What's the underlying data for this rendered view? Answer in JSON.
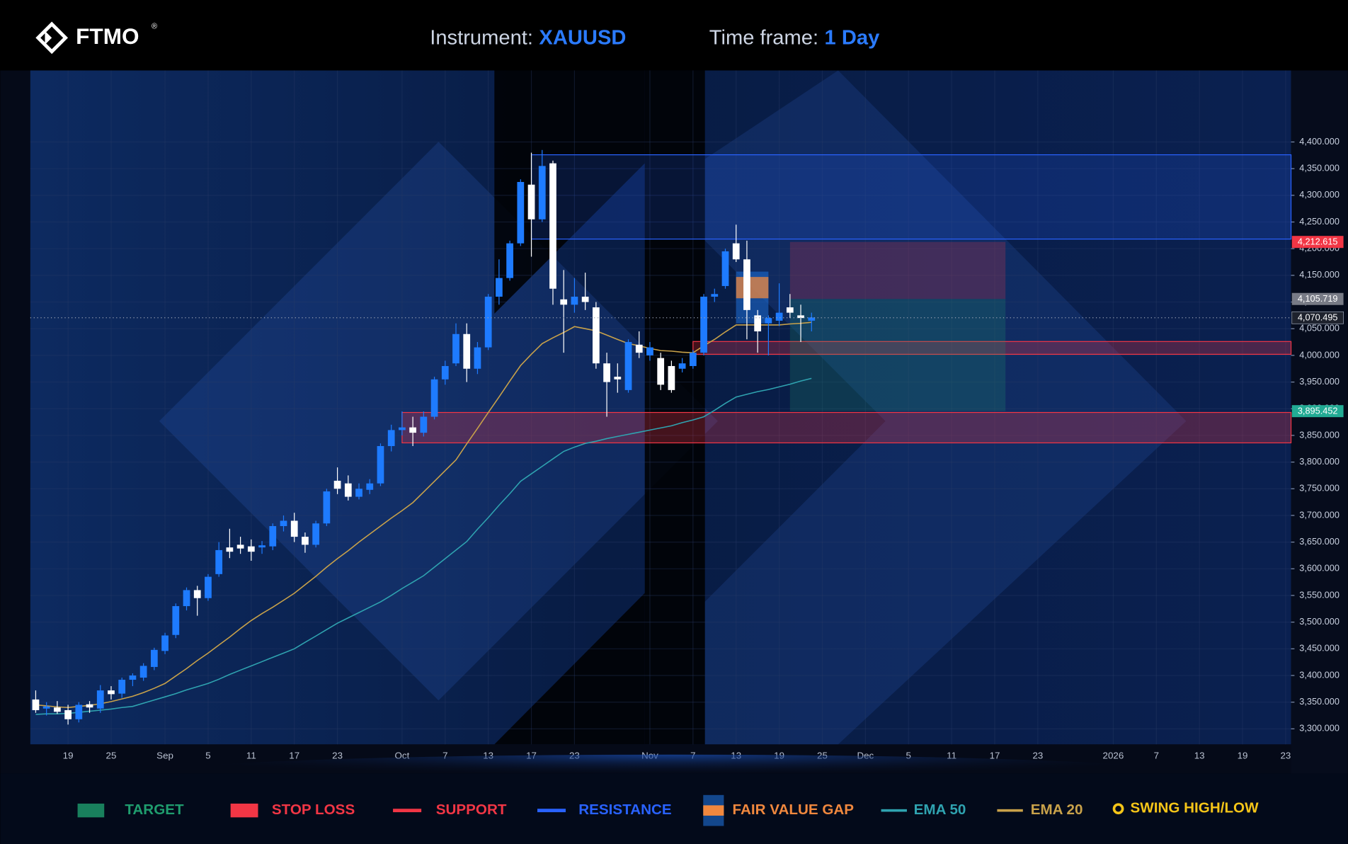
{
  "header": {
    "brand": "FTMO",
    "brand_mark": "®",
    "instrument_label": "Instrument:",
    "instrument": "XAUUSD",
    "timeframe_label": "Time frame:",
    "timeframe": "1 Day"
  },
  "chart_data": {
    "type": "candlestick",
    "up_color": "#1e7bff",
    "down_color": "#ffffff",
    "grid": true,
    "ylim": [
      3271,
      4534
    ],
    "yticks": [
      {
        "value": 3300,
        "label": "3,300.000"
      },
      {
        "value": 3350,
        "label": "3,350.000"
      },
      {
        "value": 3400,
        "label": "3,400.000"
      },
      {
        "value": 3450,
        "label": "3,450.000"
      },
      {
        "value": 3500,
        "label": "3,500.000"
      },
      {
        "value": 3550,
        "label": "3,550.000"
      },
      {
        "value": 3600,
        "label": "3,600.000"
      },
      {
        "value": 3650,
        "label": "3,650.000"
      },
      {
        "value": 3700,
        "label": "3,700.000"
      },
      {
        "value": 3750,
        "label": "3,750.000"
      },
      {
        "value": 3800,
        "label": "3,800.000"
      },
      {
        "value": 3850,
        "label": "3,850.000"
      },
      {
        "value": 3900,
        "label": "3,900.000"
      },
      {
        "value": 3950,
        "label": "3,950.000"
      },
      {
        "value": 4000,
        "label": "4,000.000"
      },
      {
        "value": 4050,
        "label": "4,050.000"
      },
      {
        "value": 4100,
        "label": "4,100.000"
      },
      {
        "value": 4150,
        "label": "4,150.000"
      },
      {
        "value": 4200,
        "label": "4,200.000"
      },
      {
        "value": 4250,
        "label": "4,250.000"
      },
      {
        "value": 4300,
        "label": "4,300.000"
      },
      {
        "value": 4350,
        "label": "4,350.000"
      },
      {
        "value": 4400,
        "label": "4,400.000"
      }
    ],
    "categories": [
      null,
      null,
      null,
      "19",
      null,
      null,
      null,
      "25",
      null,
      null,
      null,
      null,
      "Sep",
      null,
      null,
      null,
      "5",
      null,
      null,
      null,
      "11",
      null,
      null,
      null,
      "17",
      null,
      null,
      null,
      "23",
      null,
      null,
      null,
      null,
      null,
      "Oct",
      null,
      null,
      null,
      "7",
      null,
      null,
      null,
      "13",
      null,
      null,
      null,
      "17",
      null,
      null,
      null,
      "23",
      null,
      null,
      null,
      null,
      null,
      null,
      "Nov",
      null,
      null,
      null,
      "7",
      null,
      null,
      null,
      "13",
      null,
      null,
      null,
      "19",
      null,
      null,
      null,
      "25",
      null,
      null,
      null,
      "Dec",
      null,
      null,
      null,
      "5",
      null,
      null,
      null,
      "11",
      null,
      null,
      null,
      "17",
      null,
      null,
      null,
      "23",
      null,
      null,
      null,
      null,
      null,
      null,
      "2026",
      null,
      null,
      null,
      "7",
      null,
      null,
      null,
      "13",
      null,
      null,
      null,
      "19",
      null,
      null,
      null,
      "23"
    ],
    "open": [
      3355,
      3338,
      3340,
      3335,
      3318,
      3346,
      3338,
      3372,
      3366,
      3392,
      3396,
      3416,
      3446,
      3476,
      3530,
      3560,
      3545,
      3590,
      3640,
      3645,
      3642,
      3640,
      3642,
      3680,
      3690,
      3660,
      3645,
      3685,
      3765,
      3760,
      3735,
      3748,
      3760,
      3830,
      3860,
      3865,
      3855,
      3885,
      3955,
      3985,
      4040,
      3975,
      4015,
      4110,
      4145,
      4210,
      4320,
      4255,
      4360,
      4105,
      4095,
      4110,
      4090,
      3985,
      3960,
      3935,
      4020,
      4000,
      3995,
      3980,
      3975,
      3980,
      4005,
      4110,
      4130,
      4210,
      4180,
      4075,
      4060,
      4065,
      4090,
      4075,
      4065,
      null,
      null,
      null,
      null,
      null,
      null,
      null,
      null,
      null,
      null,
      null,
      null,
      null,
      null,
      null,
      null,
      null,
      null,
      null,
      null,
      null,
      null,
      null,
      null,
      null,
      null,
      null,
      null,
      null,
      null,
      null,
      null,
      null,
      null,
      null,
      null,
      null,
      null,
      null,
      null,
      null,
      null,
      null,
      null
    ],
    "high": [
      3372,
      3350,
      3352,
      3345,
      3350,
      3352,
      3382,
      3380,
      3396,
      3404,
      3423,
      3452,
      3480,
      3535,
      3565,
      3568,
      3590,
      3650,
      3675,
      3660,
      3655,
      3652,
      3685,
      3700,
      3705,
      3668,
      3690,
      3750,
      3790,
      3775,
      3760,
      3768,
      3835,
      3870,
      3895,
      3885,
      3895,
      3960,
      3990,
      4060,
      4060,
      4025,
      4115,
      4180,
      4215,
      4330,
      4380,
      4385,
      4365,
      4160,
      4145,
      4155,
      4100,
      4005,
      3985,
      4030,
      4045,
      4025,
      4005,
      3990,
      3995,
      4010,
      4115,
      4125,
      4200,
      4245,
      4215,
      4085,
      4075,
      4135,
      4115,
      4095,
      4080,
      null,
      null,
      null,
      null,
      null,
      null,
      null,
      null,
      null,
      null,
      null,
      null,
      null,
      null,
      null,
      null,
      null,
      null,
      null,
      null,
      null,
      null,
      null,
      null,
      null,
      null,
      null,
      null,
      null,
      null,
      null,
      null,
      null,
      null,
      null,
      null,
      null,
      null,
      null,
      null,
      null,
      null,
      null,
      null
    ],
    "low": [
      3330,
      3325,
      3328,
      3308,
      3312,
      3330,
      3330,
      3355,
      3358,
      3380,
      3390,
      3410,
      3440,
      3470,
      3522,
      3512,
      3540,
      3585,
      3620,
      3628,
      3615,
      3628,
      3635,
      3670,
      3650,
      3630,
      3640,
      3680,
      3740,
      3728,
      3730,
      3740,
      3755,
      3820,
      3850,
      3830,
      3848,
      3880,
      3945,
      3980,
      3950,
      3965,
      4010,
      4095,
      4140,
      4205,
      4185,
      4250,
      4095,
      4005,
      4080,
      4085,
      3975,
      3885,
      3930,
      3930,
      3995,
      3990,
      3935,
      3930,
      3968,
      3975,
      4000,
      4100,
      4125,
      4175,
      4030,
      4005,
      4000,
      4055,
      4070,
      4025,
      4045,
      null,
      null,
      null,
      null,
      null,
      null,
      null,
      null,
      null,
      null,
      null,
      null,
      null,
      null,
      null,
      null,
      null,
      null,
      null,
      null,
      null,
      null,
      null,
      null,
      null,
      null,
      null,
      null,
      null,
      null,
      null,
      null,
      null,
      null,
      null,
      null,
      null,
      null,
      null,
      null,
      null,
      null,
      null,
      null
    ],
    "close": [
      3335,
      3342,
      3332,
      3318,
      3345,
      3340,
      3372,
      3365,
      3392,
      3400,
      3418,
      3448,
      3475,
      3530,
      3560,
      3545,
      3585,
      3635,
      3632,
      3638,
      3632,
      3644,
      3680,
      3690,
      3660,
      3645,
      3685,
      3745,
      3750,
      3735,
      3750,
      3760,
      3830,
      3860,
      3865,
      3855,
      3885,
      3955,
      3980,
      4040,
      3975,
      4015,
      4110,
      4145,
      4210,
      4325,
      4255,
      4355,
      4125,
      4095,
      4110,
      4100,
      3985,
      3950,
      3955,
      4025,
      4005,
      4015,
      3945,
      3935,
      3985,
      4005,
      4110,
      4115,
      4195,
      4180,
      4085,
      4045,
      4070,
      4080,
      4080,
      4070,
      4071,
      null,
      null,
      null,
      null,
      null,
      null,
      null,
      null,
      null,
      null,
      null,
      null,
      null,
      null,
      null,
      null,
      null,
      null,
      null,
      null,
      null,
      null,
      null,
      null,
      null,
      null,
      null,
      null,
      null,
      null,
      null,
      null,
      null,
      null,
      null,
      null,
      null,
      null,
      null,
      null,
      null,
      null,
      null,
      null
    ],
    "series": [
      {
        "name": "EMA 50",
        "color": "#2fa3b0",
        "values": [
          3327,
          3328,
          3328,
          3329,
          3331,
          3333,
          3335,
          3337,
          3340,
          3342,
          3348,
          3354,
          3360,
          3366,
          3373,
          3379,
          3385,
          3393,
          3402,
          3410,
          3418,
          3426,
          3434,
          3442,
          3450,
          3462,
          3474,
          3486,
          3498,
          3508,
          3518,
          3528,
          3538,
          3550,
          3563,
          3575,
          3587,
          3603,
          3619,
          3635,
          3651,
          3674,
          3696,
          3719,
          3741,
          3764,
          3778,
          3792,
          3806,
          3820,
          3828,
          3835,
          3839,
          3844,
          3848,
          3852,
          3856,
          3860,
          3864,
          3868,
          3874,
          3879,
          3885,
          3897,
          3910,
          3922,
          3927,
          3932,
          3936,
          3941,
          3946,
          3952,
          3957,
          null,
          null,
          null,
          null,
          null,
          null,
          null,
          null,
          null,
          null,
          null,
          null,
          null,
          null,
          null,
          null,
          null,
          null,
          null,
          null,
          null,
          null,
          null,
          null,
          null,
          null,
          null,
          null,
          null,
          null,
          null,
          null,
          null,
          null,
          null,
          null,
          null,
          null,
          null,
          null,
          null,
          null,
          null,
          null
        ]
      },
      {
        "name": "EMA 20",
        "color": "#c9a24a",
        "values": [
          3345,
          3343,
          3341,
          3340,
          3342,
          3344,
          3347,
          3351,
          3356,
          3361,
          3368,
          3376,
          3385,
          3399,
          3413,
          3428,
          3442,
          3457,
          3472,
          3488,
          3503,
          3516,
          3528,
          3541,
          3554,
          3570,
          3586,
          3603,
          3619,
          3634,
          3650,
          3665,
          3680,
          3695,
          3709,
          3724,
          3744,
          3764,
          3784,
          3804,
          3834,
          3863,
          3893,
          3922,
          3952,
          3981,
          4002,
          4022,
          4033,
          4043,
          4054,
          4050,
          4046,
          4038,
          4030,
          4022,
          4018,
          4013,
          4009,
          4008,
          4006,
          4005,
          4018,
          4030,
          4044,
          4057,
          4057,
          4057,
          4057,
          4057,
          4059,
          4060,
          4062,
          null,
          null,
          null,
          null,
          null,
          null,
          null,
          null,
          null,
          null,
          null,
          null,
          null,
          null,
          null,
          null,
          null,
          null,
          null,
          null,
          null,
          null,
          null,
          null,
          null,
          null,
          null,
          null,
          null,
          null,
          null,
          null,
          null,
          null,
          null,
          null,
          null,
          null,
          null,
          null,
          null,
          null,
          null,
          null
        ]
      }
    ],
    "zones": {
      "target": {
        "name": "TARGET",
        "color": "#1f9d6e",
        "x0": 70,
        "x1": 90,
        "low": 3895.452,
        "high": 4105.719
      },
      "stop_loss": {
        "name": "STOP LOSS",
        "color": "#f23645",
        "x0": 70,
        "x1": 90,
        "low": 4105.719,
        "high": 4212.615
      },
      "support": {
        "name": "SUPPORT",
        "color": "#f23645",
        "areas": [
          {
            "x0": 61,
            "low": 4002,
            "high": 4026
          },
          {
            "x0": 34,
            "low": 3836,
            "high": 3893
          }
        ]
      },
      "resistance": {
        "name": "RESISTANCE",
        "color": "#2962ff",
        "areas": [
          {
            "x0": 46,
            "low": 4218,
            "high": 4376
          }
        ]
      },
      "fair_value_gap": {
        "name": "FAIR VALUE GAP",
        "color": "#f0883e",
        "box_color": "#1e6fd9",
        "x0": 65,
        "x1": 68,
        "low": 4107,
        "high": 4147,
        "box_low": 4060,
        "box_high": 4157
      }
    },
    "swing": {
      "name": "SWING HIGH/LOW",
      "color": "#f5c518"
    },
    "price_labels": [
      {
        "value": 4212.615,
        "label": "4,212.615",
        "color": "#f23645"
      },
      {
        "value": 4105.719,
        "label": "4,105.719",
        "color": "#787b86"
      },
      {
        "value": 4070.495,
        "label": "4,070.495",
        "color": "#1e222d",
        "line": true
      },
      {
        "value": 3895.452,
        "label": "3,895.452",
        "color": "#22ab94"
      }
    ]
  }
}
